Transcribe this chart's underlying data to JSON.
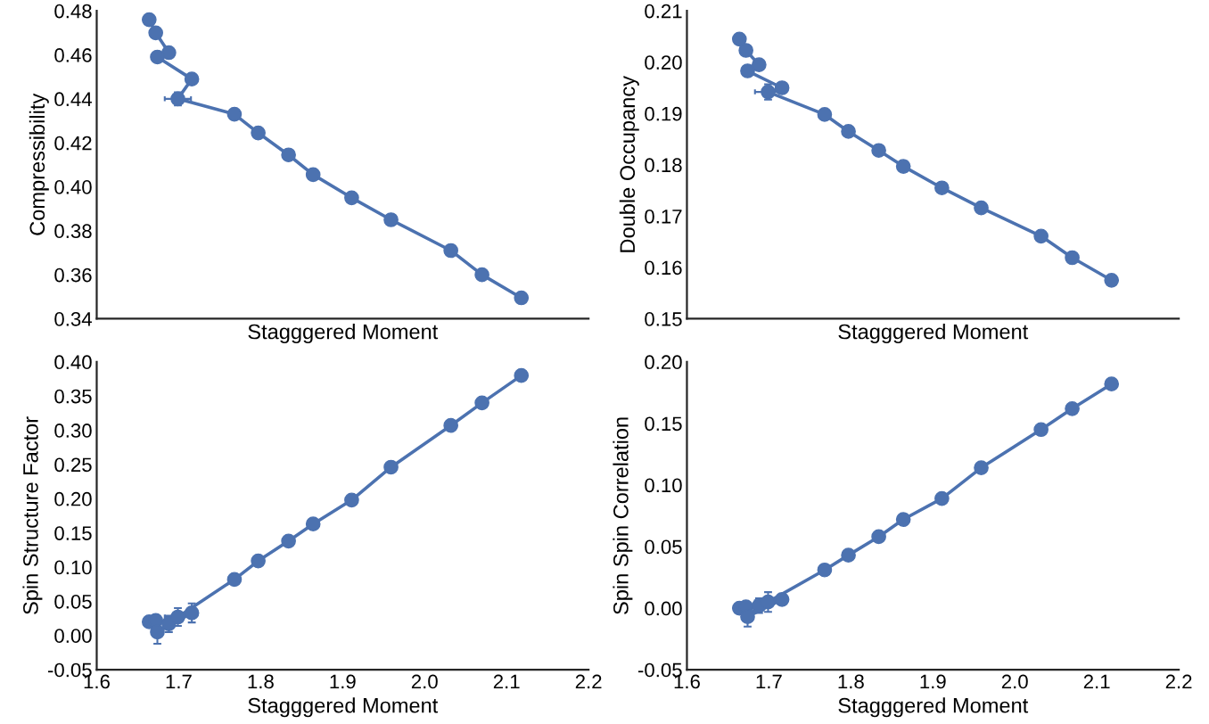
{
  "chart_data": [
    {
      "type": "line",
      "xlabel": "Stagggered Moment",
      "ylabel": "Compressibility",
      "xlim": [
        1.6,
        2.2
      ],
      "ylim": [
        0.34,
        0.48
      ],
      "yticks": [
        0.34,
        0.36,
        0.38,
        {
          "value": 0.4,
          "label": "0.40"
        },
        0.42,
        0.44,
        0.46,
        0.48
      ],
      "tick_labels": "y",
      "grid": false,
      "legend": false,
      "marker": "circle",
      "line_style": "solid",
      "series": [
        {
          "color": "#4c72b0",
          "x": [
            1.664,
            1.672,
            1.688,
            1.674,
            1.716,
            1.699,
            1.768,
            1.797,
            1.834,
            1.864,
            1.911,
            1.959,
            2.032,
            2.07,
            2.118
          ],
          "values": [
            0.476,
            0.47,
            0.461,
            0.459,
            0.449,
            0.44,
            0.433,
            0.4245,
            0.4145,
            0.4055,
            0.395,
            0.385,
            0.371,
            0.36,
            0.3495
          ],
          "errors": [
            null,
            null,
            null,
            null,
            null,
            0.003,
            null,
            null,
            null,
            null,
            null,
            null,
            0.0015,
            null,
            null
          ],
          "xerrors": [
            null,
            null,
            null,
            null,
            null,
            0.016,
            null,
            null,
            null,
            null,
            null,
            null,
            null,
            null,
            null
          ]
        }
      ]
    },
    {
      "type": "line",
      "xlabel": "Stagggered Moment",
      "ylabel": "Double Occupancy",
      "xlim": [
        1.6,
        2.2
      ],
      "ylim": [
        0.15,
        0.21
      ],
      "yticks": [
        0.15,
        0.16,
        0.17,
        0.18,
        0.19,
        {
          "value": 0.2,
          "label": "0.20"
        },
        0.21
      ],
      "tick_labels": "y",
      "grid": false,
      "legend": false,
      "marker": "circle",
      "line_style": "solid",
      "series": [
        {
          "color": "#4c72b0",
          "x": [
            1.664,
            1.672,
            1.688,
            1.674,
            1.716,
            1.699,
            1.768,
            1.797,
            1.834,
            1.864,
            1.911,
            1.959,
            2.032,
            2.07,
            2.118
          ],
          "values": [
            0.2045,
            0.2023,
            0.1995,
            0.1983,
            0.195,
            0.1942,
            0.1898,
            0.1865,
            0.1828,
            0.1797,
            0.1755,
            0.1716,
            0.1661,
            0.1619,
            0.1575
          ],
          "errors": [
            null,
            null,
            null,
            null,
            null,
            0.0015,
            null,
            null,
            null,
            null,
            null,
            null,
            null,
            null,
            null
          ],
          "xerrors": [
            null,
            null,
            null,
            null,
            null,
            0.016,
            null,
            null,
            null,
            null,
            null,
            null,
            null,
            null,
            null
          ]
        }
      ]
    },
    {
      "type": "line",
      "xlabel": "Stagggered Moment",
      "ylabel": "Spin Structure Factor",
      "xlim": [
        1.6,
        2.2
      ],
      "xticks": [
        1.6,
        1.7,
        1.8,
        1.9,
        {
          "value": 2,
          "label": "2.0"
        },
        2.1,
        2.2
      ],
      "ylim": [
        -0.05,
        0.4
      ],
      "yticks": [
        -0.05,
        {
          "value": 0,
          "label": "0.00"
        },
        0.05,
        {
          "value": 0.1,
          "label": "0.10"
        },
        0.15,
        {
          "value": 0.2,
          "label": "0.20"
        },
        0.25,
        {
          "value": 0.3,
          "label": "0.30"
        },
        0.35,
        {
          "value": 0.4,
          "label": "0.40"
        }
      ],
      "grid": false,
      "legend": false,
      "marker": "circle",
      "line_style": "solid",
      "series": [
        {
          "color": "#4c72b0",
          "x": [
            1.664,
            1.672,
            1.688,
            1.674,
            1.716,
            1.699,
            1.768,
            1.797,
            1.834,
            1.864,
            1.911,
            1.959,
            2.032,
            2.07,
            2.118
          ],
          "values": [
            0.02,
            0.022,
            0.017,
            0.005,
            0.033,
            0.027,
            0.082,
            0.109,
            0.138,
            0.163,
            0.198,
            0.246,
            0.307,
            0.34,
            0.38
          ],
          "errors": [
            null,
            null,
            0.012,
            0.017,
            0.014,
            0.013,
            null,
            null,
            null,
            null,
            null,
            null,
            0.004,
            null,
            null
          ],
          "xerrors": [
            null,
            null,
            null,
            null,
            null,
            0.016,
            null,
            null,
            null,
            null,
            null,
            null,
            null,
            null,
            null
          ]
        }
      ]
    },
    {
      "type": "line",
      "xlabel": "Stagggered Moment",
      "ylabel": "Spin Spin Correlation",
      "xlim": [
        1.6,
        2.2
      ],
      "xticks": [
        1.6,
        1.7,
        1.8,
        1.9,
        {
          "value": 2,
          "label": "2.0"
        },
        2.1,
        2.2
      ],
      "ylim": [
        -0.05,
        0.2
      ],
      "yticks": [
        -0.05,
        {
          "value": 0,
          "label": "0.00"
        },
        0.05,
        {
          "value": 0.1,
          "label": "0.10"
        },
        0.15,
        {
          "value": 0.2,
          "label": "0.20"
        }
      ],
      "grid": false,
      "legend": false,
      "marker": "circle",
      "line_style": "solid",
      "series": [
        {
          "color": "#4c72b0",
          "x": [
            1.664,
            1.672,
            1.688,
            1.674,
            1.716,
            1.699,
            1.768,
            1.797,
            1.834,
            1.864,
            1.911,
            1.959,
            2.032,
            2.07,
            2.118
          ],
          "values": [
            0.0,
            0.001,
            0.002,
            -0.007,
            0.007,
            0.005,
            0.031,
            0.043,
            0.058,
            0.072,
            0.089,
            0.114,
            0.145,
            0.162,
            0.182
          ],
          "errors": [
            null,
            null,
            0.006,
            0.008,
            0.004,
            0.008,
            null,
            null,
            null,
            null,
            null,
            null,
            0.003,
            null,
            null
          ],
          "xerrors": [
            null,
            null,
            null,
            null,
            null,
            0.016,
            null,
            null,
            null,
            null,
            null,
            null,
            null,
            null,
            null
          ]
        }
      ]
    }
  ]
}
